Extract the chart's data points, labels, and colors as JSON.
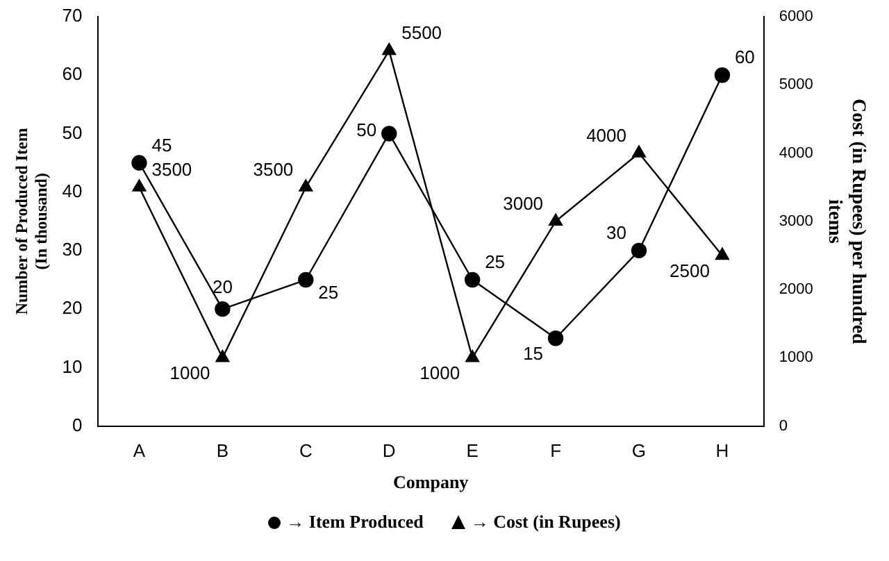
{
  "chart_data": {
    "type": "line",
    "xlabel": "Company",
    "ylabel": "Number of Produced Item\n(In thousand)",
    "y2label": "Cost (in Rupees) per hundred\nitems",
    "categories": [
      "A",
      "B",
      "C",
      "D",
      "E",
      "F",
      "G",
      "H"
    ],
    "series": [
      {
        "name": "→ Item Produced",
        "color": "#000000",
        "marker": "circle",
        "values": [
          45,
          20,
          25,
          50,
          25,
          15,
          30,
          60
        ]
      },
      {
        "name": "→ Cost (in Rupees)",
        "color": "#000000",
        "marker": "triangle",
        "axis": "y2",
        "values": [
          3500,
          1000,
          3500,
          5500,
          1000,
          3000,
          4000,
          2500
        ]
      }
    ],
    "ylim": [
      0,
      70
    ],
    "yticks": [
      0,
      10,
      20,
      30,
      40,
      50,
      60,
      70
    ],
    "y2lim": [
      0,
      6000
    ],
    "y2ticks": [
      0,
      1000,
      2000,
      3000,
      4000,
      5000,
      6000
    ],
    "grid": false,
    "legend": "bottom",
    "data_labels": true,
    "line_style": "solid"
  }
}
